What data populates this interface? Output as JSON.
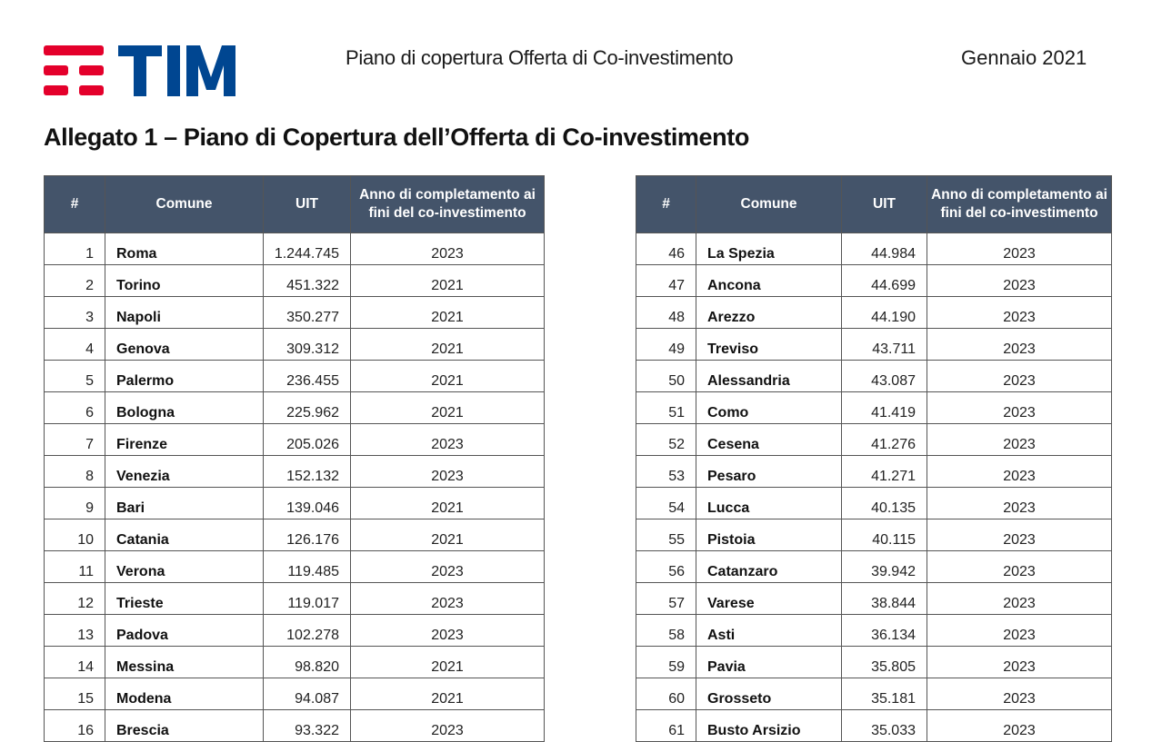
{
  "header": {
    "logo_text": "TIM",
    "subtitle": "Piano di copertura Offerta di Co-investimento",
    "date": "Gennaio 2021",
    "colors": {
      "logo_red": "#e4002b",
      "logo_blue": "#004691",
      "table_header_bg": "#44546a"
    }
  },
  "page_title": "Allegato 1 – Piano di Copertura dell’Offerta di Co-investimento",
  "columns": {
    "num": "#",
    "comune": "Comune",
    "uit": "UIT",
    "anno": "Anno di completamento ai fini del co-investimento"
  },
  "left_table": {
    "rows": [
      {
        "num": "1",
        "comune": "Roma",
        "uit": "1.244.745",
        "anno": "2023"
      },
      {
        "num": "2",
        "comune": "Torino",
        "uit": "451.322",
        "anno": "2021"
      },
      {
        "num": "3",
        "comune": "Napoli",
        "uit": "350.277",
        "anno": "2021"
      },
      {
        "num": "4",
        "comune": "Genova",
        "uit": "309.312",
        "anno": "2021"
      },
      {
        "num": "5",
        "comune": "Palermo",
        "uit": "236.455",
        "anno": "2021"
      },
      {
        "num": "6",
        "comune": "Bologna",
        "uit": "225.962",
        "anno": "2021"
      },
      {
        "num": "7",
        "comune": "Firenze",
        "uit": "205.026",
        "anno": "2023"
      },
      {
        "num": "8",
        "comune": "Venezia",
        "uit": "152.132",
        "anno": "2023"
      },
      {
        "num": "9",
        "comune": "Bari",
        "uit": "139.046",
        "anno": "2021"
      },
      {
        "num": "10",
        "comune": "Catania",
        "uit": "126.176",
        "anno": "2021"
      },
      {
        "num": "11",
        "comune": "Verona",
        "uit": "119.485",
        "anno": "2023"
      },
      {
        "num": "12",
        "comune": "Trieste",
        "uit": "119.017",
        "anno": "2023"
      },
      {
        "num": "13",
        "comune": "Padova",
        "uit": "102.278",
        "anno": "2023"
      },
      {
        "num": "14",
        "comune": "Messina",
        "uit": "98.820",
        "anno": "2021"
      },
      {
        "num": "15",
        "comune": "Modena",
        "uit": "94.087",
        "anno": "2021"
      },
      {
        "num": "16",
        "comune": "Brescia",
        "uit": "93.322",
        "anno": "2023"
      }
    ]
  },
  "right_table": {
    "rows": [
      {
        "num": "46",
        "comune": "La Spezia",
        "uit": "44.984",
        "anno": "2023"
      },
      {
        "num": "47",
        "comune": "Ancona",
        "uit": "44.699",
        "anno": "2023"
      },
      {
        "num": "48",
        "comune": "Arezzo",
        "uit": "44.190",
        "anno": "2023"
      },
      {
        "num": "49",
        "comune": "Treviso",
        "uit": "43.711",
        "anno": "2023"
      },
      {
        "num": "50",
        "comune": "Alessandria",
        "uit": "43.087",
        "anno": "2023"
      },
      {
        "num": "51",
        "comune": "Como",
        "uit": "41.419",
        "anno": "2023"
      },
      {
        "num": "52",
        "comune": "Cesena",
        "uit": "41.276",
        "anno": "2023"
      },
      {
        "num": "53",
        "comune": "Pesaro",
        "uit": "41.271",
        "anno": "2023"
      },
      {
        "num": "54",
        "comune": "Lucca",
        "uit": "40.135",
        "anno": "2023"
      },
      {
        "num": "55",
        "comune": "Pistoia",
        "uit": "40.115",
        "anno": "2023"
      },
      {
        "num": "56",
        "comune": "Catanzaro",
        "uit": "39.942",
        "anno": "2023"
      },
      {
        "num": "57",
        "comune": "Varese",
        "uit": "38.844",
        "anno": "2023"
      },
      {
        "num": "58",
        "comune": "Asti",
        "uit": "36.134",
        "anno": "2023"
      },
      {
        "num": "59",
        "comune": "Pavia",
        "uit": "35.805",
        "anno": "2023"
      },
      {
        "num": "60",
        "comune": "Grosseto",
        "uit": "35.181",
        "anno": "2023"
      },
      {
        "num": "61",
        "comune": "Busto Arsizio",
        "uit": "35.033",
        "anno": "2023"
      }
    ]
  }
}
